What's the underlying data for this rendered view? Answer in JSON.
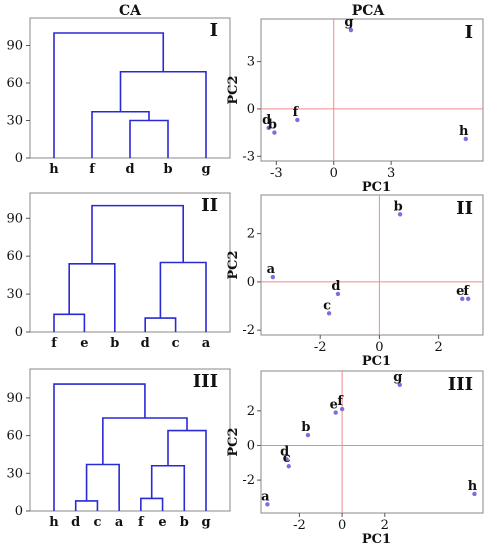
{
  "headers": {
    "ca": "CA",
    "pca": "PCA"
  },
  "chart_data": [
    {
      "type": "dendrogram",
      "panel": "I",
      "ylim": [
        0,
        112
      ],
      "yticks": [
        0,
        30,
        60,
        90
      ],
      "leaves": [
        "h",
        "f",
        "d",
        "b",
        "g"
      ],
      "merges": [
        {
          "left": "d",
          "right": "b",
          "height": 30
        },
        {
          "left": "f",
          "right": "d-b",
          "height": 37
        },
        {
          "left": "f-d-b",
          "right": "g",
          "height": 69
        },
        {
          "left": "h",
          "right": "f-d-b-g",
          "height": 100
        }
      ]
    },
    {
      "type": "scatter",
      "panel": "I",
      "xlabel": "PC1",
      "ylabel": "PC2",
      "xlim": [
        -3.8,
        7.8
      ],
      "ylim": [
        -3.3,
        5.7
      ],
      "xticks": [
        -3,
        0,
        3
      ],
      "yticks": [
        -3,
        0,
        3
      ],
      "points": [
        {
          "label": "g",
          "x": 0.9,
          "y": 5.0
        },
        {
          "label": "f",
          "x": -1.9,
          "y": -0.7
        },
        {
          "label": "d",
          "x": -3.4,
          "y": -1.2
        },
        {
          "label": "b",
          "x": -3.1,
          "y": -1.5
        },
        {
          "label": "h",
          "x": 6.9,
          "y": -1.9
        }
      ]
    },
    {
      "type": "dendrogram",
      "panel": "II",
      "ylim": [
        0,
        110
      ],
      "yticks": [
        0,
        30,
        60,
        90
      ],
      "leaves": [
        "f",
        "e",
        "b",
        "d",
        "c",
        "a"
      ],
      "merges": [
        {
          "left": "f",
          "right": "e",
          "height": 14
        },
        {
          "left": "d",
          "right": "c",
          "height": 11
        },
        {
          "left": "f-e",
          "right": "b",
          "height": 54
        },
        {
          "left": "d-c",
          "right": "a",
          "height": 55
        },
        {
          "left": "f-e-b",
          "right": "d-c-a",
          "height": 100
        }
      ]
    },
    {
      "type": "scatter",
      "panel": "II",
      "xlabel": "PC1",
      "ylabel": "PC2",
      "xlim": [
        -4.0,
        3.5
      ],
      "ylim": [
        -2.2,
        3.6
      ],
      "xticks": [
        -2,
        0,
        2
      ],
      "yticks": [
        -2,
        0,
        2
      ],
      "points": [
        {
          "label": "b",
          "x": 0.7,
          "y": 2.8
        },
        {
          "label": "a",
          "x": -3.6,
          "y": 0.2
        },
        {
          "label": "d",
          "x": -1.4,
          "y": -0.5
        },
        {
          "label": "c",
          "x": -1.7,
          "y": -1.3
        },
        {
          "label": "e",
          "x": 2.8,
          "y": -0.7
        },
        {
          "label": "f",
          "x": 3.0,
          "y": -0.7
        }
      ]
    },
    {
      "type": "dendrogram",
      "panel": "III",
      "ylim": [
        0,
        113
      ],
      "yticks": [
        0,
        30,
        60,
        90
      ],
      "leaves": [
        "h",
        "d",
        "c",
        "a",
        "f",
        "e",
        "b",
        "g"
      ],
      "merges": [
        {
          "left": "d",
          "right": "c",
          "height": 8
        },
        {
          "left": "f",
          "right": "e",
          "height": 10
        },
        {
          "left": "d-c",
          "right": "a",
          "height": 37
        },
        {
          "left": "f-e",
          "right": "b",
          "height": 36
        },
        {
          "left": "f-e-b",
          "right": "g",
          "height": 64
        },
        {
          "left": "d-c-a",
          "right": "f-e-b-g",
          "height": 74
        },
        {
          "left": "h",
          "right": "d-c-a-f-e-b-g",
          "height": 101
        }
      ]
    },
    {
      "type": "scatter",
      "panel": "III",
      "xlabel": "PC1",
      "ylabel": "PC2",
      "xlim": [
        -3.8,
        6.6
      ],
      "ylim": [
        -3.9,
        4.3
      ],
      "xticks": [
        -2,
        0,
        2
      ],
      "yticks": [
        -2,
        0,
        2
      ],
      "points": [
        {
          "label": "g",
          "x": 2.7,
          "y": 3.5
        },
        {
          "label": "e",
          "x": -0.3,
          "y": 1.9
        },
        {
          "label": "f",
          "x": 0.0,
          "y": 2.1
        },
        {
          "label": "b",
          "x": -1.6,
          "y": 0.6
        },
        {
          "label": "d",
          "x": -2.6,
          "y": -0.8
        },
        {
          "label": "c",
          "x": -2.5,
          "y": -1.2
        },
        {
          "label": "a",
          "x": -3.5,
          "y": -3.4
        },
        {
          "label": "h",
          "x": 6.2,
          "y": -2.8
        }
      ]
    }
  ]
}
